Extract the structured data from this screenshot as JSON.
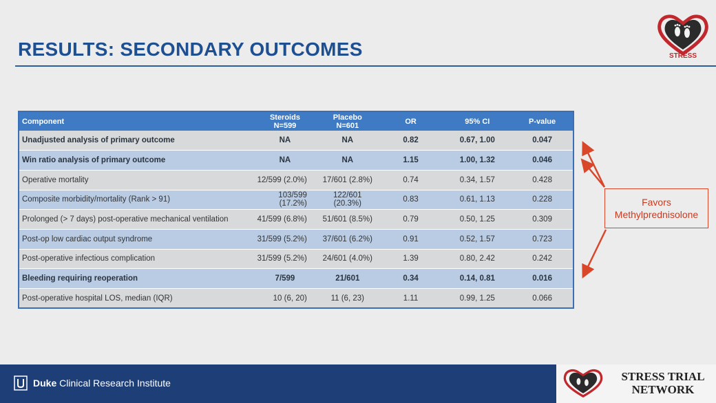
{
  "title": "RESULTS: SECONDARY OUTCOMES",
  "logo_text": "STRESS",
  "table": {
    "headers": [
      {
        "line1": "Component",
        "line2": ""
      },
      {
        "line1": "Steroids",
        "line2": "N=599"
      },
      {
        "line1": "Placebo",
        "line2": "N=601"
      },
      {
        "line1": "OR",
        "line2": ""
      },
      {
        "line1": "95% CI",
        "line2": ""
      },
      {
        "line1": "P-value",
        "line2": ""
      }
    ],
    "rows": [
      {
        "component": "Unadjusted analysis of primary outcome",
        "steroids": "NA",
        "placebo": "NA",
        "or": "0.82",
        "ci": "0.67, 1.00",
        "p": "0.047",
        "bold": true
      },
      {
        "component": "Win ratio analysis of primary outcome",
        "steroids": "NA",
        "placebo": "NA",
        "or": "1.15",
        "ci": "1.00, 1.32",
        "p": "0.046",
        "bold": true
      },
      {
        "component": "Operative mortality",
        "steroids": "12/599 (2.0%)",
        "placebo": "17/601 (2.8%)",
        "or": "0.74",
        "ci": "0.34, 1.57",
        "p": "0.428",
        "bold": false
      },
      {
        "component": "Composite morbidity/mortality (Rank > 91)",
        "steroids": "103/599 (17.2%)",
        "placebo": "122/601 (20.3%)",
        "or": "0.83",
        "ci": "0.61, 1.13",
        "p": "0.228",
        "bold": false
      },
      {
        "component": "Prolonged (> 7 days) post-operative mechanical ventilation",
        "steroids": "41/599 (6.8%)",
        "placebo": "51/601 (8.5%)",
        "or": "0.79",
        "ci": "0.50, 1.25",
        "p": "0.309",
        "bold": false
      },
      {
        "component": "Post-op low cardiac output syndrome",
        "steroids": "31/599 (5.2%)",
        "placebo": "37/601 (6.2%)",
        "or": "0.91",
        "ci": "0.52, 1.57",
        "p": "0.723",
        "bold": false
      },
      {
        "component": "Post-operative infectious complication",
        "steroids": "31/599 (5.2%)",
        "placebo": "24/601 (4.0%)",
        "or": "1.39",
        "ci": "0.80, 2.42",
        "p": "0.242",
        "bold": false
      },
      {
        "component": "Bleeding requiring reoperation",
        "steroids": "7/599",
        "placebo": "21/601",
        "or": "0.34",
        "ci": "0.14, 0.81",
        "p": "0.016",
        "bold": true
      },
      {
        "component": "Post-operative hospital LOS, median (IQR)",
        "steroids": "10 (6, 20)",
        "placebo": "11 (6, 23)",
        "or": "1.11",
        "ci": "0.99, 1.25",
        "p": "0.066",
        "bold": false
      }
    ]
  },
  "callout": {
    "line1": "Favors",
    "line2": "Methylprednisolone"
  },
  "footer": {
    "duke": "Duke",
    "institute": " Clinical Research Institute"
  },
  "network": {
    "line1": "STRESS TRIAL",
    "line2": "NETWORK"
  },
  "colors": {
    "title": "#1d4f91",
    "header_bg": "#3f7bc4",
    "row_odd": "#d7d9db",
    "row_even": "#b9cce4",
    "callout": "#d9472b",
    "footer_bg": "#1e3e78"
  }
}
